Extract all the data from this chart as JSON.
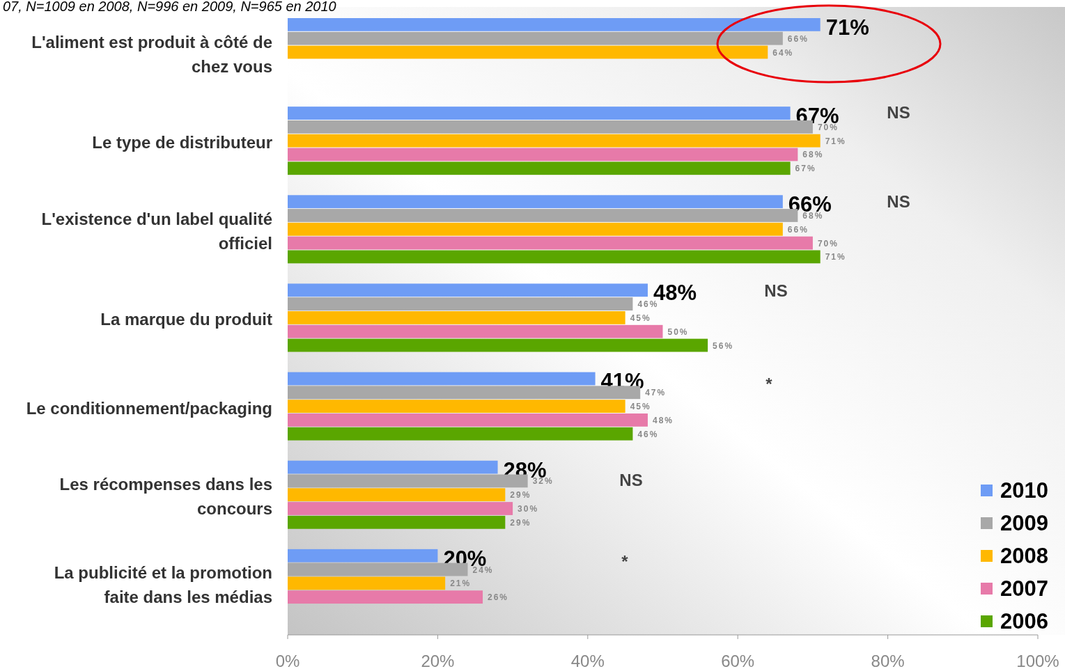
{
  "chart_data": {
    "type": "bar",
    "orientation": "horizontal",
    "subtitle": "07, N=1009 en 2008, N=996 en 2009, N=965 en 2010",
    "categories": [
      "L'aliment est produit à côté de chez vous",
      "Le type de distributeur",
      "L'existence d'un label qualité officiel",
      "La marque du produit",
      "Le conditionnement/packaging",
      "Les récompenses dans les concours",
      "La publicité et la promotion faite dans les médias"
    ],
    "series": [
      {
        "name": "2010",
        "color": "#6e9cf5",
        "values": [
          71,
          67,
          66,
          48,
          41,
          28,
          20
        ],
        "value_labels": [
          "71%",
          "67%",
          "66%",
          "48%",
          "41%",
          "28%",
          "20%"
        ]
      },
      {
        "name": "2009",
        "color": "#a8a8a8",
        "values": [
          66,
          70,
          68,
          46,
          47,
          32,
          24
        ],
        "value_labels": [
          "66%",
          "70%",
          "68%",
          "46%",
          "47%",
          "32%",
          "24%"
        ]
      },
      {
        "name": "2008",
        "color": "#ffb800",
        "values": [
          64,
          71,
          66,
          45,
          45,
          29,
          21
        ],
        "value_labels": [
          "64%",
          "71%",
          "66%",
          "45%",
          "45%",
          "29%",
          "21%"
        ]
      },
      {
        "name": "2007",
        "color": "#e77aa9",
        "values": [
          null,
          68,
          70,
          50,
          48,
          30,
          26
        ],
        "value_labels": [
          null,
          "68%",
          "70%",
          "50%",
          "48%",
          "30%",
          "26%"
        ]
      },
      {
        "name": "2006",
        "color": "#5aa600",
        "values": [
          null,
          67,
          71,
          56,
          46,
          29,
          null
        ],
        "value_labels": [
          null,
          "67%",
          "71%",
          "56%",
          "46%",
          "29%",
          null
        ]
      }
    ],
    "xlim": [
      0,
      100
    ],
    "xticks": [
      {
        "value": 0,
        "label": "0%"
      },
      {
        "value": 20,
        "label": "20%"
      },
      {
        "value": 40,
        "label": "40%"
      },
      {
        "value": 60,
        "label": "60%"
      },
      {
        "value": 80,
        "label": "80%"
      },
      {
        "value": 100,
        "label": "100%"
      }
    ],
    "legend": "bottom right",
    "annotations": [
      "NS",
      "NS",
      "NS",
      "*",
      "NS",
      "*"
    ]
  }
}
